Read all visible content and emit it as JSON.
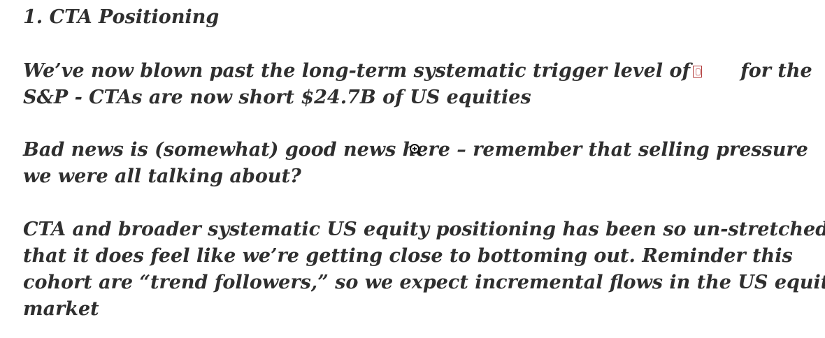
{
  "heading": "1. CTA Positioning",
  "paragraph1": {
    "line1_before": "We’ve now blown past the long-term systematic trigger level of",
    "line1_after": "for the",
    "line2": "S&P - CTAs are now short $24.7B of US equities",
    "inline_image_icon": "broken-image-icon"
  },
  "paragraph2": {
    "line1": "Bad news is (somewhat) good news here – remember that selling pressure",
    "line2": "we were all talking about?"
  },
  "paragraph3": {
    "line1": "CTA and broader systematic US equity positioning has been so un-stretched",
    "line2": "that it does feel like we’re getting close to bottoming out. Reminder this",
    "line3": "cohort are “trend followers,” so we expect incremental flows in the US equity",
    "line4": "market"
  },
  "cursor_icon": "zoom-cursor-icon",
  "colors": {
    "text": "#2f2f2f",
    "background": "#ffffff",
    "broken_image_border": "#b13a3a"
  }
}
